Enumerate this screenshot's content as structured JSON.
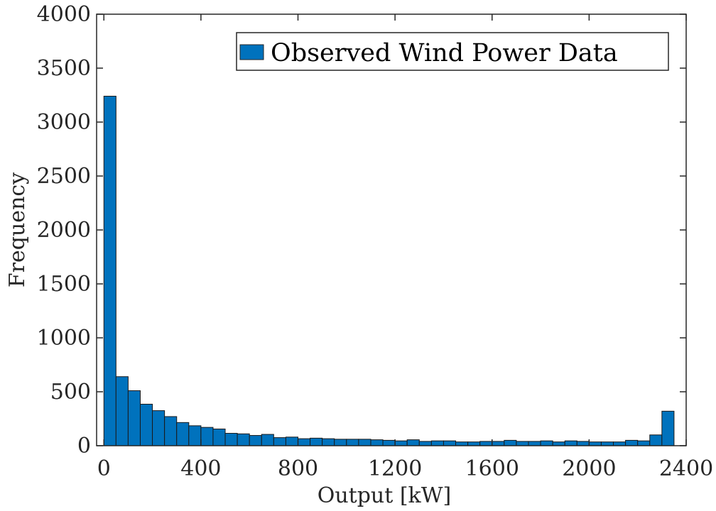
{
  "chart_data": {
    "type": "bar",
    "xlabel": "Output [kW]",
    "ylabel": "Frequency",
    "xlim": [
      -30,
      2400
    ],
    "ylim": [
      0,
      4000
    ],
    "xticks": [
      0,
      400,
      800,
      1200,
      1600,
      2000,
      2400
    ],
    "yticks": [
      0,
      500,
      1000,
      1500,
      2000,
      2500,
      3000,
      3500,
      4000
    ],
    "grid": false,
    "legend_position": "top-right",
    "bin_width": 50,
    "series": [
      {
        "name": "Observed Wind Power Data",
        "color": "#0072BD",
        "bin_centers": [
          25,
          75,
          125,
          175,
          225,
          275,
          325,
          375,
          425,
          475,
          525,
          575,
          625,
          675,
          725,
          775,
          825,
          875,
          925,
          975,
          1025,
          1075,
          1125,
          1175,
          1225,
          1275,
          1325,
          1375,
          1425,
          1475,
          1525,
          1575,
          1625,
          1675,
          1725,
          1775,
          1825,
          1875,
          1925,
          1975,
          2025,
          2075,
          2125,
          2175,
          2225,
          2275,
          2325
        ],
        "values": [
          3240,
          640,
          510,
          385,
          325,
          270,
          215,
          185,
          170,
          155,
          115,
          110,
          95,
          105,
          75,
          80,
          65,
          70,
          65,
          60,
          60,
          60,
          55,
          50,
          45,
          55,
          40,
          45,
          45,
          35,
          35,
          40,
          40,
          50,
          40,
          40,
          45,
          35,
          45,
          40,
          35,
          35,
          35,
          50,
          45,
          100,
          320
        ]
      }
    ]
  }
}
